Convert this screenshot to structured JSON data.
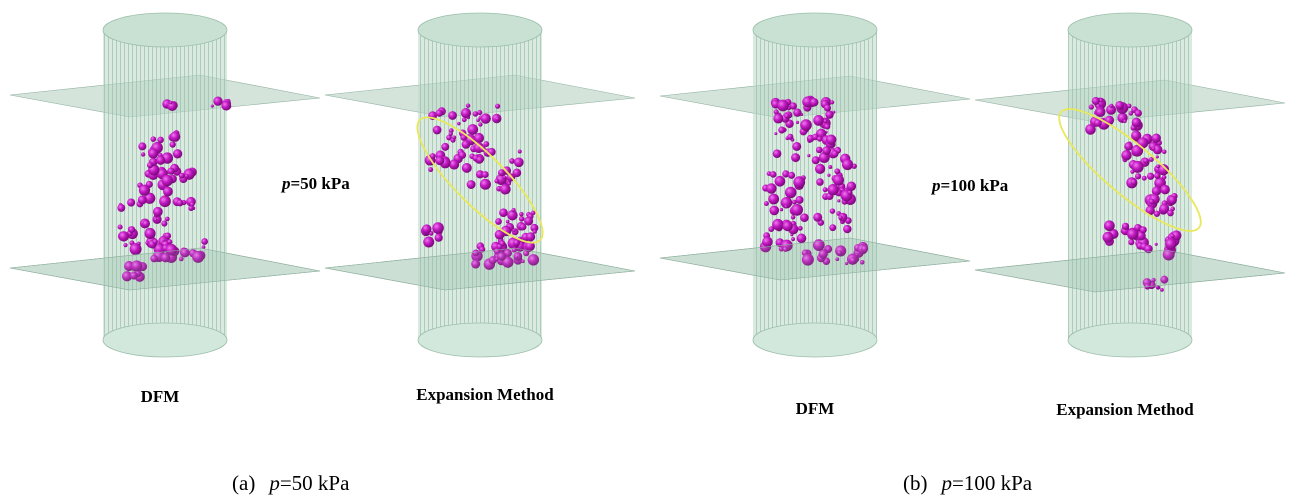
{
  "panels": [
    {
      "labels": [
        "DFM",
        "Expansion Method"
      ],
      "pressure": {
        "symbol": "p",
        "text": "=50 kPa"
      },
      "caption": {
        "letter": "(a)",
        "symbol": "p",
        "text": "=50 kPa"
      }
    },
    {
      "labels": [
        "DFM",
        "Expansion Method"
      ],
      "pressure": {
        "symbol": "p",
        "text": "=100 kPa"
      },
      "caption": {
        "letter": "(b)",
        "symbol": "p",
        "text": "=100 kPa"
      }
    }
  ]
}
